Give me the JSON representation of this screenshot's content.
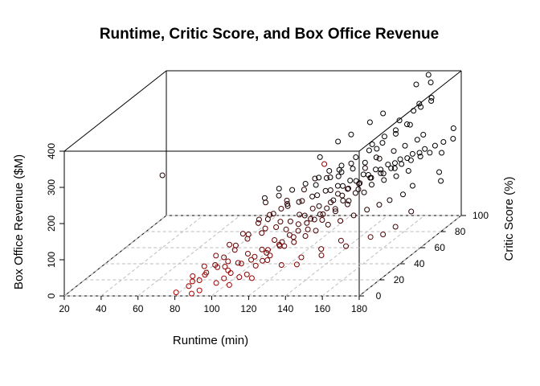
{
  "chart_data": {
    "type": "scatter",
    "subtype": "3d-scatter",
    "title": "Runtime, Critic Score, and Box Office Revenue",
    "xlabel": "Runtime (min)",
    "ylabel": "Critic Score (%)",
    "zlabel": "Box Office Revenue ($M)",
    "xlim": [
      20,
      180
    ],
    "ylim": [
      0,
      100
    ],
    "zlim": [
      0,
      400
    ],
    "xticks": [
      "20",
      "40",
      "60",
      "80",
      "100",
      "120",
      "140",
      "160",
      "180"
    ],
    "yticks": [
      "0",
      "20",
      "40",
      "60",
      "80",
      "100"
    ],
    "zticks": [
      "0",
      "100",
      "200",
      "300",
      "400"
    ],
    "grid": true,
    "colors": {
      "low": "#c00000",
      "high": "#000000"
    },
    "color_by": "z (height along depth)",
    "points": [
      [
        79,
        3,
        3
      ],
      [
        88,
        2,
        2
      ],
      [
        90,
        6,
        2
      ],
      [
        84,
        10,
        18
      ],
      [
        88,
        15,
        25
      ],
      [
        92,
        20,
        35
      ],
      [
        95,
        25,
        40
      ],
      [
        98,
        8,
        18
      ],
      [
        100,
        12,
        22
      ],
      [
        102,
        15,
        30
      ],
      [
        105,
        18,
        12
      ],
      [
        108,
        20,
        15
      ],
      [
        110,
        25,
        28
      ],
      [
        112,
        28,
        35
      ],
      [
        115,
        30,
        45
      ],
      [
        118,
        22,
        50
      ],
      [
        120,
        35,
        60
      ],
      [
        97,
        28,
        65
      ],
      [
        103,
        30,
        50
      ],
      [
        109,
        33,
        55
      ],
      [
        113,
        38,
        70
      ],
      [
        116,
        40,
        60
      ],
      [
        119,
        42,
        75
      ],
      [
        122,
        45,
        80
      ],
      [
        125,
        48,
        95
      ],
      [
        128,
        50,
        100
      ],
      [
        130,
        52,
        110
      ],
      [
        132,
        55,
        120
      ],
      [
        135,
        58,
        105
      ],
      [
        138,
        60,
        130
      ],
      [
        140,
        62,
        125
      ],
      [
        142,
        65,
        140
      ],
      [
        145,
        68,
        135
      ],
      [
        100,
        35,
        80
      ],
      [
        105,
        40,
        85
      ],
      [
        110,
        45,
        90
      ],
      [
        115,
        50,
        95
      ],
      [
        120,
        55,
        100
      ],
      [
        125,
        60,
        115
      ],
      [
        130,
        65,
        120
      ],
      [
        135,
        70,
        140
      ],
      [
        140,
        72,
        150
      ],
      [
        145,
        75,
        160
      ],
      [
        150,
        78,
        165
      ],
      [
        155,
        80,
        175
      ],
      [
        95,
        22,
        32
      ],
      [
        101,
        24,
        38
      ],
      [
        107,
        26,
        42
      ],
      [
        112,
        32,
        48
      ],
      [
        117,
        36,
        58
      ],
      [
        123,
        39,
        62
      ],
      [
        127,
        43,
        70
      ],
      [
        131,
        46,
        78
      ],
      [
        136,
        49,
        88
      ],
      [
        141,
        52,
        92
      ],
      [
        146,
        56,
        98
      ],
      [
        151,
        60,
        105
      ],
      [
        156,
        63,
        112
      ],
      [
        160,
        66,
        118
      ],
      [
        165,
        70,
        125
      ],
      [
        168,
        74,
        140
      ],
      [
        108,
        38,
        102
      ],
      [
        114,
        42,
        112
      ],
      [
        121,
        48,
        118
      ],
      [
        126,
        52,
        126
      ],
      [
        133,
        57,
        132
      ],
      [
        137,
        61,
        142
      ],
      [
        143,
        66,
        148
      ],
      [
        148,
        70,
        152
      ],
      [
        153,
        73,
        158
      ],
      [
        158,
        76,
        162
      ],
      [
        163,
        79,
        170
      ],
      [
        110,
        50,
        130
      ],
      [
        118,
        56,
        138
      ],
      [
        124,
        60,
        145
      ],
      [
        129,
        64,
        150
      ],
      [
        134,
        67,
        155
      ],
      [
        139,
        71,
        160
      ],
      [
        144,
        74,
        170
      ],
      [
        149,
        77,
        178
      ],
      [
        154,
        82,
        185
      ],
      [
        159,
        85,
        192
      ],
      [
        164,
        88,
        200
      ],
      [
        150,
        60,
        220
      ],
      [
        155,
        65,
        235
      ],
      [
        160,
        70,
        245
      ],
      [
        165,
        72,
        255
      ],
      [
        170,
        75,
        265
      ],
      [
        130,
        70,
        175
      ],
      [
        135,
        75,
        185
      ],
      [
        140,
        78,
        195
      ],
      [
        145,
        80,
        205
      ],
      [
        120,
        80,
        150
      ],
      [
        125,
        82,
        160
      ],
      [
        115,
        75,
        140
      ],
      [
        105,
        65,
        110
      ],
      [
        100,
        55,
        90
      ],
      [
        95,
        45,
        70
      ],
      [
        92,
        38,
        55
      ],
      [
        90,
        30,
        40
      ],
      [
        88,
        25,
        30
      ],
      [
        86,
        20,
        20
      ],
      [
        85,
        15,
        10
      ],
      [
        82,
        10,
        5
      ],
      [
        98,
        50,
        100
      ],
      [
        103,
        55,
        105
      ],
      [
        108,
        60,
        115
      ],
      [
        113,
        62,
        122
      ],
      [
        118,
        66,
        128
      ],
      [
        123,
        70,
        135
      ],
      [
        128,
        73,
        142
      ],
      [
        133,
        76,
        150
      ],
      [
        138,
        80,
        158
      ],
      [
        143,
        83,
        165
      ],
      [
        148,
        86,
        172
      ],
      [
        153,
        89,
        180
      ],
      [
        158,
        92,
        188
      ],
      [
        163,
        95,
        195
      ],
      [
        168,
        96,
        202
      ],
      [
        172,
        97,
        210
      ],
      [
        140,
        85,
        230
      ],
      [
        145,
        88,
        245
      ],
      [
        150,
        90,
        258
      ],
      [
        155,
        92,
        270
      ],
      [
        148,
        75,
        240
      ],
      [
        138,
        68,
        215
      ],
      [
        128,
        62,
        188
      ],
      [
        118,
        58,
        165
      ],
      [
        112,
        52,
        148
      ],
      [
        106,
        46,
        122
      ],
      [
        102,
        42,
        108
      ],
      [
        97,
        36,
        92
      ],
      [
        93,
        30,
        75
      ],
      [
        89,
        24,
        58
      ],
      [
        86,
        18,
        42
      ],
      [
        83,
        12,
        28
      ],
      [
        135,
        45,
        110
      ],
      [
        130,
        40,
        95
      ],
      [
        125,
        35,
        85
      ],
      [
        120,
        30,
        75
      ],
      [
        115,
        28,
        65
      ],
      [
        110,
        24,
        55
      ],
      [
        105,
        20,
        45
      ],
      [
        100,
        16,
        35
      ],
      [
        120,
        65,
        180
      ],
      [
        125,
        70,
        190
      ],
      [
        130,
        73,
        198
      ],
      [
        135,
        78,
        210
      ],
      [
        140,
        82,
        220
      ],
      [
        145,
        86,
        232
      ],
      [
        150,
        90,
        248
      ],
      [
        155,
        95,
        262
      ],
      [
        142,
        92,
        300
      ],
      [
        136,
        90,
        280
      ],
      [
        128,
        86,
        255
      ],
      [
        122,
        84,
        240
      ],
      [
        160,
        95,
        320
      ],
      [
        165,
        98,
        330
      ],
      [
        158,
        93,
        305
      ],
      [
        152,
        90,
        285
      ],
      [
        150,
        20,
        320
      ],
      [
        138,
        55,
        160
      ],
      [
        142,
        58,
        168
      ],
      [
        146,
        62,
        174
      ],
      [
        150,
        65,
        182
      ],
      [
        154,
        68,
        188
      ],
      [
        158,
        71,
        195
      ],
      [
        162,
        74,
        200
      ],
      [
        166,
        76,
        206
      ],
      [
        170,
        78,
        212
      ],
      [
        174,
        80,
        218
      ],
      [
        116,
        44,
        86
      ],
      [
        121,
        47,
        94
      ],
      [
        126,
        50,
        102
      ],
      [
        131,
        53,
        108
      ],
      [
        136,
        56,
        116
      ],
      [
        141,
        59,
        122
      ],
      [
        96,
        60,
        125
      ],
      [
        101,
        64,
        135
      ],
      [
        106,
        68,
        142
      ],
      [
        111,
        72,
        150
      ],
      [
        116,
        76,
        158
      ],
      [
        172,
        85,
        350
      ],
      [
        168,
        82,
        340
      ],
      [
        176,
        70,
        290
      ],
      [
        160,
        92,
        380
      ],
      [
        165,
        95,
        400
      ],
      [
        169,
        90,
        390
      ],
      [
        110,
        88,
        188
      ],
      [
        95,
        75,
        130
      ],
      [
        90,
        70,
        115
      ],
      [
        124,
        25,
        30
      ],
      [
        132,
        30,
        40
      ],
      [
        140,
        35,
        52
      ],
      [
        148,
        40,
        64
      ],
      [
        104,
        10,
        8
      ],
      [
        114,
        14,
        18
      ],
      [
        134,
        22,
        38
      ],
      [
        144,
        28,
        50
      ],
      [
        154,
        34,
        62
      ],
      [
        164,
        40,
        74
      ],
      [
        178,
        82,
        160
      ],
      [
        176,
        88,
        200
      ],
      [
        180,
        92,
        230
      ],
      [
        178,
        96,
        250
      ],
      [
        40,
        60,
        200
      ],
      [
        180,
        80,
        140
      ],
      [
        175,
        60,
        100
      ],
      [
        172,
        50,
        80
      ],
      [
        168,
        45,
        70
      ],
      [
        126,
        78,
        175
      ]
    ]
  }
}
